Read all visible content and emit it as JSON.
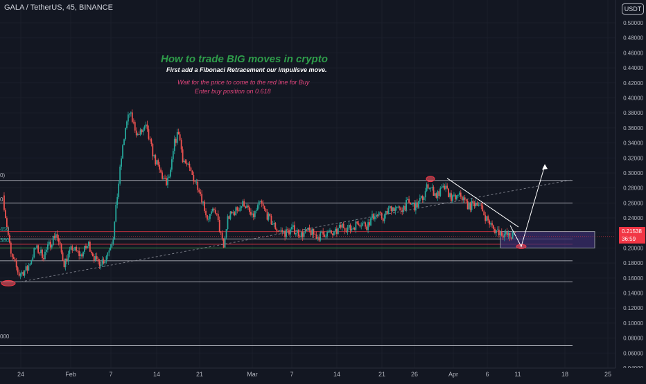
{
  "symbol_label": "GALA / TetherUS, 45, BINANCE",
  "currency": "USDT",
  "annotations": {
    "title": "How to trade BIG moves in crypto",
    "line1": "First  add a Fibonaci Retracement our impulisve move.",
    "line2": "Wait for the price to come to the red line for Buy",
    "line3": "Enter buy position on 0.618"
  },
  "last_price": {
    "price": "0.21538",
    "countdown": "36:59"
  },
  "fib_labels": [
    "0)",
    "0",
    "450",
    "380",
    "000"
  ],
  "colors": {
    "background": "#131722",
    "up": "#26a69a",
    "down": "#ef5350",
    "title": "#2e9c4a",
    "pink": "#e0457b",
    "price_tag": "#f23645"
  },
  "chart_data": {
    "type": "candlestick",
    "pair": "GALA / TetherUS",
    "timeframe": "45",
    "exchange": "BINANCE",
    "y_axis_ticks": [
      "0.50000",
      "0.48000",
      "0.46000",
      "0.44000",
      "0.42000",
      "0.40000",
      "0.38000",
      "0.36000",
      "0.34000",
      "0.32000",
      "0.30000",
      "0.28000",
      "0.26000",
      "0.24000",
      "0.22000",
      "0.20000",
      "0.18000",
      "0.16000",
      "0.14000",
      "0.12000",
      "0.10000",
      "0.08000",
      "0.06000",
      "0.04000"
    ],
    "ylim": [
      0.036,
      0.51
    ],
    "x_axis_ticks": [
      "24",
      "Feb",
      "7",
      "14",
      "21",
      "Mar",
      "7",
      "14",
      "21",
      "26",
      "Apr",
      "6",
      "11",
      "18",
      "25"
    ],
    "price_path": [
      [
        0,
        0.27
      ],
      [
        2,
        0.19
      ],
      [
        4,
        0.165
      ],
      [
        6,
        0.172
      ],
      [
        8,
        0.2
      ],
      [
        10,
        0.19
      ],
      [
        13,
        0.22
      ],
      [
        15,
        0.18
      ],
      [
        17,
        0.2
      ],
      [
        19,
        0.19
      ],
      [
        21,
        0.205
      ],
      [
        23,
        0.18
      ],
      [
        25,
        0.185
      ],
      [
        27,
        0.215
      ],
      [
        28,
        0.27
      ],
      [
        29,
        0.32
      ],
      [
        30,
        0.36
      ],
      [
        31,
        0.38
      ],
      [
        33,
        0.35
      ],
      [
        35,
        0.36
      ],
      [
        37,
        0.32
      ],
      [
        39,
        0.295
      ],
      [
        40,
        0.285
      ],
      [
        41,
        0.3
      ],
      [
        42,
        0.34
      ],
      [
        43,
        0.355
      ],
      [
        44,
        0.32
      ],
      [
        46,
        0.3
      ],
      [
        48,
        0.28
      ],
      [
        50,
        0.24
      ],
      [
        52,
        0.25
      ],
      [
        54,
        0.2
      ],
      [
        55,
        0.24
      ],
      [
        57,
        0.25
      ],
      [
        59,
        0.26
      ],
      [
        61,
        0.24
      ],
      [
        63,
        0.26
      ],
      [
        65,
        0.24
      ],
      [
        67,
        0.225
      ],
      [
        69,
        0.22
      ],
      [
        71,
        0.225
      ],
      [
        73,
        0.218
      ],
      [
        75,
        0.222
      ],
      [
        77,
        0.215
      ],
      [
        79,
        0.22
      ],
      [
        81,
        0.218
      ],
      [
        83,
        0.23
      ],
      [
        85,
        0.225
      ],
      [
        87,
        0.235
      ],
      [
        89,
        0.23
      ],
      [
        91,
        0.245
      ],
      [
        93,
        0.24
      ],
      [
        95,
        0.255
      ],
      [
        97,
        0.25
      ],
      [
        99,
        0.26
      ],
      [
        101,
        0.255
      ],
      [
        103,
        0.27
      ],
      [
        104,
        0.285
      ],
      [
        106,
        0.27
      ],
      [
        108,
        0.28
      ],
      [
        110,
        0.265
      ],
      [
        112,
        0.27
      ],
      [
        114,
        0.255
      ],
      [
        116,
        0.262
      ],
      [
        118,
        0.242
      ],
      [
        120,
        0.225
      ],
      [
        122,
        0.22
      ],
      [
        124,
        0.215
      ],
      [
        126,
        0.22
      ]
    ],
    "fib_levels": [
      0.29,
      0.26,
      0.222,
      0.212,
      0.205,
      0.2,
      0.183,
      0.155,
      0.07
    ],
    "zone": [
      0.2,
      0.222
    ],
    "forecast_target": 0.31
  }
}
